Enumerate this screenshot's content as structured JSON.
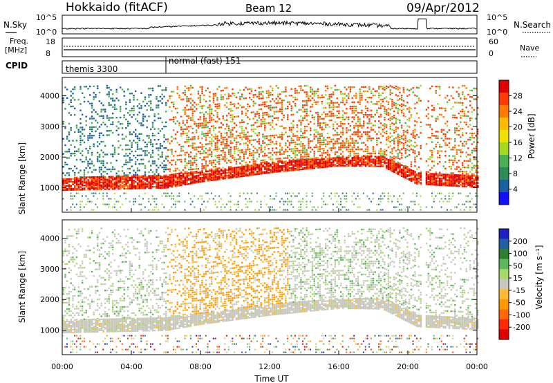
{
  "header": {
    "station": "Hokkaido (fitACF)",
    "beam": "Beam 12",
    "date": "09/Apr/2012"
  },
  "panels": {
    "nsky": {
      "label": "N.Sky",
      "right_label": "N.Search",
      "ticks_left": [
        "10^5",
        "10^0"
      ],
      "ticks_right": [
        "10^5",
        "10^0"
      ]
    },
    "freq": {
      "label_line1": "Freq.",
      "label_line2": "[MHz]",
      "right_label": "Nave",
      "ticks_left": [
        "18",
        "8"
      ],
      "ticks_right": [
        "60",
        "0"
      ]
    },
    "cpid": {
      "label": "CPID",
      "segments": [
        {
          "label": "themis 3300",
          "start_hour": 0,
          "end_hour": 6
        },
        {
          "label": "normal (fast) 151",
          "start_hour": 6,
          "end_hour": 24
        }
      ]
    }
  },
  "axes": {
    "ylabel": "Slant Range [km]",
    "xlabel": "Time UT",
    "x_ticks": [
      "00:00",
      "04:00",
      "08:00",
      "12:00",
      "16:00",
      "20:00",
      "00:00"
    ],
    "y_ticks": [
      "1000",
      "2000",
      "3000",
      "4000"
    ]
  },
  "colorbars": {
    "power": {
      "label": "Power [dB]",
      "ticks": [
        "28",
        "24",
        "20",
        "16",
        "12",
        "8",
        "4"
      ],
      "colors": [
        "#e00000",
        "#ff3c00",
        "#ff7a00",
        "#ffbb00",
        "#f2e000",
        "#a6d820",
        "#4caf50",
        "#2e8b57",
        "#1c5fa0",
        "#1010ff"
      ]
    },
    "velocity": {
      "label": "Velocity [m s⁻¹]",
      "ticks": [
        "200",
        "100",
        "50",
        "15",
        "-15",
        "-50",
        "-100",
        "-200"
      ],
      "colors": [
        "#2020c0",
        "#2060a0",
        "#2e7d32",
        "#5cb85c",
        "#a6d96a",
        "#c8c8c0",
        "#ffbb33",
        "#ff9900",
        "#ff6a00",
        "#ff2a00",
        "#e00000"
      ]
    }
  },
  "chart_data": {
    "type": "heatmap",
    "title": "Hokkaido (fitACF) Beam 12 09/Apr/2012",
    "xlabel": "Time UT",
    "ylabel": "Slant Range [km]",
    "xlim_hours": [
      0,
      24
    ],
    "ylim_km": [
      200,
      4600
    ],
    "power_scatter_band_km": [
      {
        "hour": 0,
        "center": 1100,
        "width": 400
      },
      {
        "hour": 6,
        "center": 1200,
        "width": 450
      },
      {
        "hour": 8,
        "center": 1350,
        "width": 350
      },
      {
        "hour": 12,
        "center": 1650,
        "width": 350
      },
      {
        "hour": 16,
        "center": 1850,
        "width": 300
      },
      {
        "hour": 18.5,
        "center": 1850,
        "width": 350
      },
      {
        "hour": 20.5,
        "center": 1300,
        "width": 400
      },
      {
        "hour": 24,
        "center": 1200,
        "width": 400
      }
    ],
    "data_gap_hours": [
      20.8,
      21.0
    ]
  }
}
